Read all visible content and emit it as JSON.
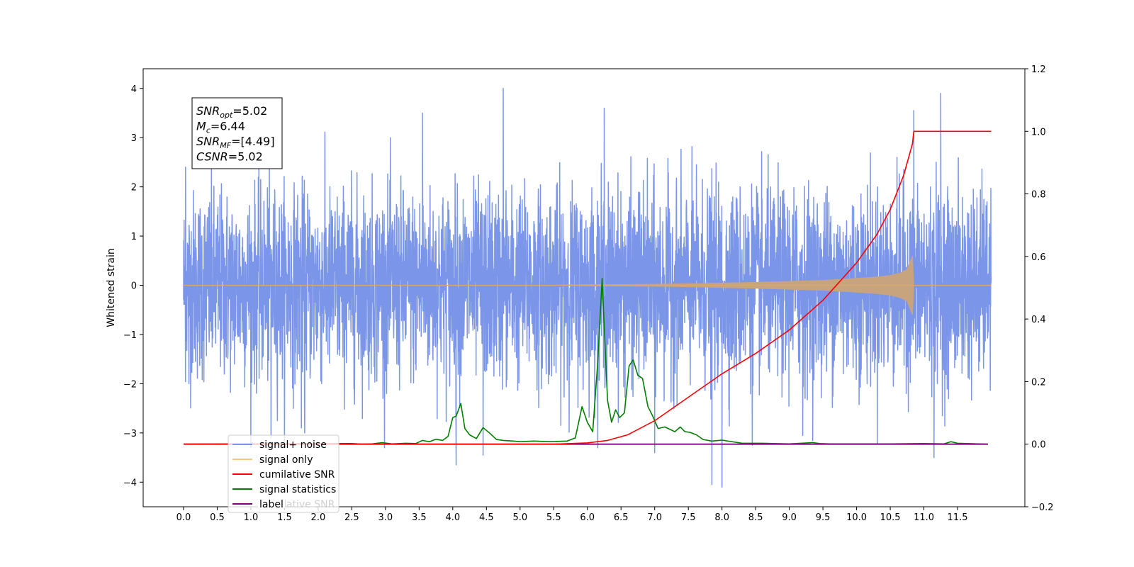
{
  "chart_data": {
    "type": "line",
    "xlabel": "",
    "ylabel": "Whitened strain",
    "xlim": [
      -0.6,
      12.5
    ],
    "ylim": [
      -4.5,
      4.4
    ],
    "ylim_right": [
      -0.2,
      1.2
    ],
    "x_ticks": [
      0.0,
      0.5,
      1.0,
      1.5,
      2.0,
      2.5,
      3.0,
      3.5,
      4.0,
      4.5,
      5.0,
      5.5,
      6.0,
      6.5,
      7.0,
      7.5,
      8.0,
      8.5,
      9.0,
      9.5,
      10.0,
      10.5,
      11.0,
      11.5
    ],
    "x_tick_labels": [
      "0.0",
      "0.5",
      "1.0",
      "1.5",
      "2.0",
      "2.5",
      "3.0",
      "3.5",
      "4.0",
      "4.5",
      "5.0",
      "5.5",
      "6.0",
      "6.5",
      "7.0",
      "7.5",
      "8.0",
      "8.5",
      "9.0",
      "9.5",
      "10.0",
      "10.5",
      "11.0",
      "11.5"
    ],
    "y_ticks": [
      -4,
      -3,
      -2,
      -1,
      0,
      1,
      2,
      3,
      4
    ],
    "y_tick_labels": [
      "−4",
      "−3",
      "−2",
      "−1",
      "0",
      "1",
      "2",
      "3",
      "4"
    ],
    "y_ticks_right": [
      -0.2,
      0.0,
      0.2,
      0.4,
      0.6,
      0.8,
      1.0,
      1.2
    ],
    "y_tick_labels_right": [
      "−0.2",
      "0.0",
      "0.2",
      "0.4",
      "0.6",
      "0.8",
      "1.0",
      "1.2"
    ],
    "grid": false,
    "legend_position": "lower-left",
    "annotation": [
      {
        "sym": "SNR",
        "sub": "opt",
        "val": "=5.02"
      },
      {
        "sym": "M",
        "sub": "c",
        "val": "=6.44"
      },
      {
        "sym": "SNR",
        "sub": "MF",
        "val": "=[4.49]"
      },
      {
        "sym": "CSNR",
        "sub": "",
        "val": "=5.02"
      }
    ],
    "series": [
      {
        "name": "signal+ noise",
        "color": "#7b96e8",
        "axis": "left",
        "x_range": [
          0.0,
          12.0
        ],
        "envelope_std": 0.95,
        "peaks": [
          [
            0.03,
            2.4
          ],
          [
            0.08,
            -2.0
          ],
          [
            1.3,
            -3.1
          ],
          [
            1.75,
            -2.9
          ],
          [
            1.8,
            -3.0
          ],
          [
            3.55,
            3.5
          ],
          [
            4.05,
            -3.65
          ],
          [
            4.45,
            -3.45
          ],
          [
            4.75,
            4.0
          ],
          [
            6.25,
            3.6
          ],
          [
            7.0,
            -3.4
          ],
          [
            7.85,
            -4.05
          ],
          [
            8.0,
            -4.1
          ],
          [
            8.45,
            -3.25
          ],
          [
            9.2,
            -3.05
          ],
          [
            10.85,
            3.55
          ],
          [
            11.15,
            -3.5
          ],
          [
            11.25,
            3.9
          ]
        ]
      },
      {
        "name": "signal only",
        "color": "#f5c880",
        "axis": "left",
        "x": [
          0.0,
          5.5,
          6.0,
          6.5,
          7.0,
          7.5,
          8.0,
          8.5,
          9.0,
          9.5,
          10.0,
          10.3,
          10.5,
          10.65,
          10.75,
          10.83,
          10.85,
          12.0
        ],
        "amplitude": [
          0.0,
          0.0,
          0.01,
          0.015,
          0.02,
          0.03,
          0.045,
          0.06,
          0.08,
          0.1,
          0.14,
          0.17,
          0.2,
          0.25,
          0.32,
          0.6,
          0.0,
          0.0
        ]
      },
      {
        "name": "cumilative SNR",
        "color": "#ff0000",
        "axis": "right",
        "x": [
          0.0,
          5.5,
          6.0,
          6.3,
          6.6,
          7.0,
          7.5,
          8.0,
          8.5,
          9.0,
          9.5,
          10.0,
          10.3,
          10.5,
          10.7,
          10.83,
          10.85,
          12.0
        ],
        "values": [
          0.0,
          0.0,
          0.004,
          0.012,
          0.03,
          0.075,
          0.15,
          0.225,
          0.29,
          0.365,
          0.46,
          0.58,
          0.67,
          0.75,
          0.86,
          0.96,
          1.0,
          1.0
        ]
      },
      {
        "name": "signal statistics",
        "color": "#008000",
        "axis": "right",
        "x": [
          0.0,
          2.5,
          2.65,
          2.8,
          2.95,
          3.1,
          3.3,
          3.45,
          3.55,
          3.65,
          3.75,
          3.85,
          3.93,
          4.0,
          4.05,
          4.12,
          4.18,
          4.25,
          4.35,
          4.45,
          4.55,
          4.65,
          4.75,
          4.9,
          5.0,
          5.2,
          5.45,
          5.7,
          5.82,
          5.92,
          6.0,
          6.08,
          6.15,
          6.22,
          6.26,
          6.3,
          6.36,
          6.42,
          6.48,
          6.55,
          6.62,
          6.68,
          6.75,
          6.82,
          6.9,
          6.97,
          7.05,
          7.15,
          7.25,
          7.3,
          7.38,
          7.45,
          7.52,
          7.62,
          7.72,
          7.85,
          8.0,
          8.3,
          8.6,
          9.0,
          9.35,
          9.45,
          9.6,
          10.0,
          10.5,
          11.0,
          11.3,
          11.4,
          11.5,
          11.95
        ],
        "values": [
          0.0,
          0.002,
          0.0,
          0.001,
          0.005,
          0.001,
          0.003,
          0.002,
          0.012,
          0.008,
          0.016,
          0.012,
          0.025,
          0.085,
          0.09,
          0.13,
          0.05,
          0.03,
          0.018,
          0.053,
          0.035,
          0.015,
          0.012,
          0.01,
          0.008,
          0.01,
          0.008,
          0.01,
          0.02,
          0.12,
          0.07,
          0.04,
          0.25,
          0.53,
          0.33,
          0.14,
          0.07,
          0.11,
          0.085,
          0.1,
          0.25,
          0.27,
          0.22,
          0.21,
          0.12,
          0.09,
          0.05,
          0.055,
          0.045,
          0.04,
          0.055,
          0.04,
          0.038,
          0.03,
          0.015,
          0.01,
          0.013,
          0.003,
          0.003,
          0.001,
          0.005,
          0.002,
          0.001,
          0.001,
          0.001,
          0.002,
          0.001,
          0.008,
          0.003,
          0.0
        ]
      },
      {
        "name": "label",
        "color": "#800080",
        "axis": "right",
        "x": [
          0.0,
          11.95
        ],
        "values": [
          0.0,
          0.0
        ]
      }
    ],
    "legend_hidden_text": "cumilative SNR"
  }
}
